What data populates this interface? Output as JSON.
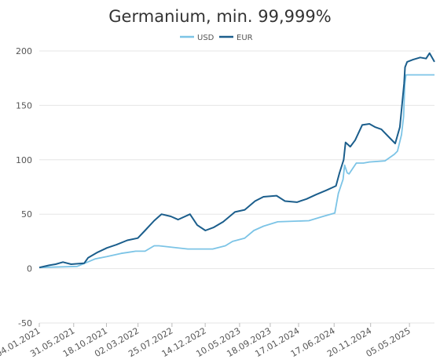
{
  "chart_data": {
    "type": "line",
    "title": "Germanium, min. 99,999%",
    "colors": {
      "USD": "#7cc4e6",
      "EUR": "#1b5e8c",
      "grid": "#e6e6e6",
      "text": "#555555",
      "title": "#333333"
    },
    "legend": {
      "placement": "top-center",
      "entries": [
        "USD",
        "EUR"
      ]
    },
    "grid": true,
    "ylim": [
      -50,
      200
    ],
    "yticks": [
      -50,
      0,
      50,
      100,
      150,
      200
    ],
    "xticks": [
      "04.01.2021",
      "31.05.2021",
      "18.10.2021",
      "02.03.2022",
      "25.07.2022",
      "14.12.2022",
      "10.05.2023",
      "18.09.2023",
      "17.01.2024",
      "17.06.2024",
      "20.11.2024",
      "05.05.2025"
    ],
    "x_range": [
      "2021-01-04",
      "2025-08-20"
    ],
    "series": [
      {
        "name": "USD",
        "x": [
          "2021-01-04",
          "2021-06-15",
          "2021-09-01",
          "2021-10-20",
          "2021-12-20",
          "2022-01-20",
          "2022-02-20",
          "2022-04-01",
          "2022-05-10",
          "2022-05-30",
          "2022-10-01",
          "2023-01-15",
          "2023-03-10",
          "2023-04-10",
          "2023-06-01",
          "2023-07-10",
          "2023-08-20",
          "2023-10-20",
          "2024-03-01",
          "2024-05-01",
          "2024-06-20",
          "2024-07-05",
          "2024-07-25",
          "2024-08-01",
          "2024-08-12",
          "2024-08-20",
          "2024-09-20",
          "2024-10-20",
          "2024-11-15",
          "2025-01-20",
          "2025-03-01",
          "2025-03-15",
          "2025-04-01",
          "2025-04-10",
          "2025-04-15",
          "2025-04-20",
          "2025-08-20"
        ],
        "y": [
          1,
          2,
          9,
          11,
          14,
          15,
          16,
          16,
          21,
          21,
          18,
          18,
          21,
          25,
          28,
          35,
          39,
          43,
          44,
          48,
          51,
          69,
          82,
          95,
          88,
          87,
          97,
          97,
          98,
          99,
          105,
          108,
          123,
          140,
          170,
          178,
          178
        ]
      },
      {
        "name": "EUR",
        "x": [
          "2021-01-04",
          "2021-02-15",
          "2021-03-15",
          "2021-04-15",
          "2021-05-20",
          "2021-07-15",
          "2021-08-01",
          "2021-09-10",
          "2021-10-20",
          "2021-11-30",
          "2022-01-15",
          "2022-03-01",
          "2022-04-01",
          "2022-05-10",
          "2022-06-10",
          "2022-07-20",
          "2022-08-20",
          "2022-10-10",
          "2022-11-10",
          "2022-12-15",
          "2023-01-20",
          "2023-03-01",
          "2023-04-20",
          "2023-06-01",
          "2023-07-15",
          "2023-08-20",
          "2023-10-15",
          "2023-11-20",
          "2024-01-10",
          "2024-02-20",
          "2024-04-01",
          "2024-05-15",
          "2024-06-25",
          "2024-07-10",
          "2024-07-28",
          "2024-08-05",
          "2024-08-25",
          "2024-09-15",
          "2024-10-15",
          "2024-11-15",
          "2024-12-10",
          "2025-01-05",
          "2025-02-10",
          "2025-03-05",
          "2025-03-25",
          "2025-04-12",
          "2025-04-16",
          "2025-04-25",
          "2025-05-20",
          "2025-06-20",
          "2025-07-15",
          "2025-07-30",
          "2025-08-20"
        ],
        "y": [
          1,
          3,
          4,
          6,
          4,
          5,
          10,
          15,
          19,
          22,
          26,
          28,
          35,
          44,
          50,
          48,
          45,
          50,
          40,
          35,
          38,
          43,
          52,
          54,
          62,
          66,
          67,
          62,
          61,
          64,
          68,
          72,
          76,
          88,
          100,
          116,
          112,
          118,
          132,
          133,
          130,
          128,
          120,
          115,
          130,
          170,
          185,
          190,
          192,
          194,
          193,
          198,
          190
        ]
      }
    ]
  }
}
